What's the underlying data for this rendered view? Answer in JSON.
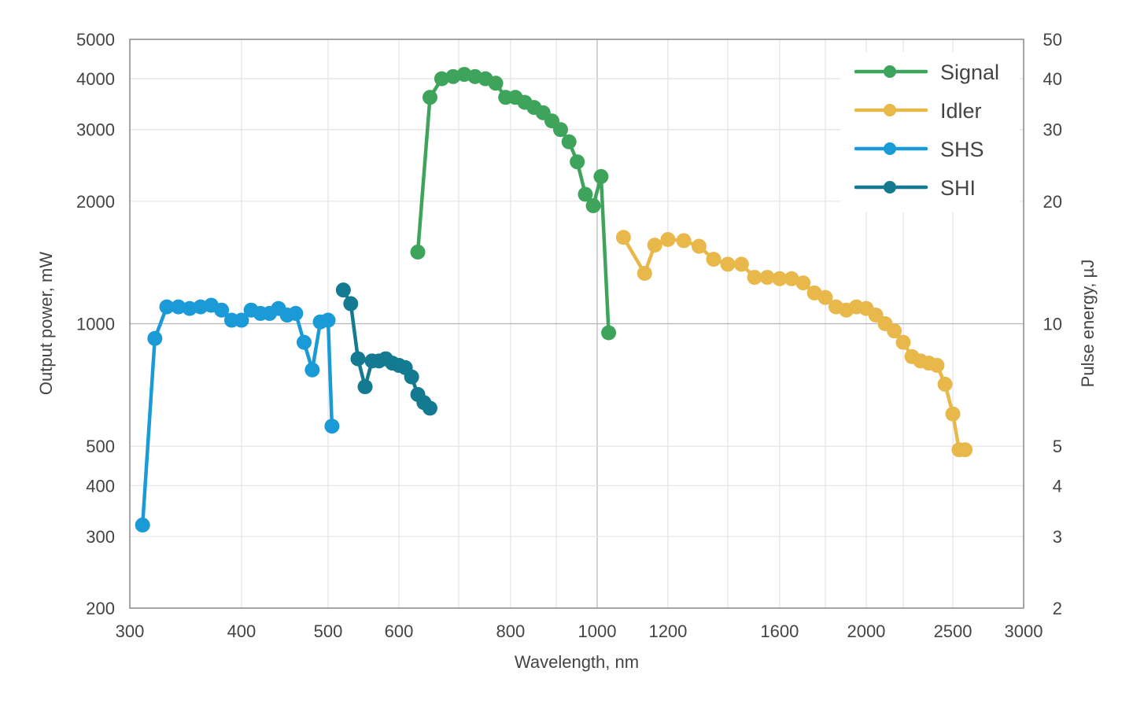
{
  "chart_data": {
    "type": "line",
    "xlabel": "Wavelength, nm",
    "ylabel": "Output power, mW",
    "y2label": "Pulse energy, µJ",
    "x_scale": "log",
    "y_scale": "log",
    "xlim": [
      300,
      3000
    ],
    "ylim": [
      200,
      5000
    ],
    "y2lim": [
      2,
      50
    ],
    "grid": true,
    "legend_position": "top-right",
    "x_ticks": [
      300,
      400,
      500,
      600,
      800,
      1000,
      1200,
      1600,
      2000,
      2500,
      3000
    ],
    "x_tick_labels": [
      "300",
      "400",
      "500",
      "600",
      "800",
      "1000",
      "1200",
      "1600",
      "2000",
      "2500",
      "3000"
    ],
    "x_minor_grid": [
      700,
      900,
      1400,
      1800,
      2200
    ],
    "y_ticks": [
      200,
      300,
      400,
      500,
      1000,
      2000,
      3000,
      4000,
      5000
    ],
    "y_tick_labels": [
      "200",
      "300",
      "400",
      "500",
      "1000",
      "2000",
      "3000",
      "4000",
      "5000"
    ],
    "y2_tick_labels": [
      "2",
      "3",
      "4",
      "5",
      "10",
      "20",
      "30",
      "40",
      "50"
    ],
    "series": [
      {
        "name": "Signal",
        "color": "#3fa45b",
        "x": [
          630,
          650,
          670,
          690,
          710,
          730,
          750,
          770,
          790,
          810,
          830,
          850,
          870,
          890,
          910,
          930,
          950,
          970,
          990,
          1010,
          1030
        ],
        "y": [
          1500,
          3600,
          4000,
          4050,
          4100,
          4050,
          4000,
          3900,
          3600,
          3600,
          3500,
          3400,
          3300,
          3150,
          3000,
          2800,
          2500,
          2080,
          1950,
          2300,
          950
        ]
      },
      {
        "name": "Idler",
        "color": "#e8b84a",
        "x": [
          1070,
          1130,
          1160,
          1200,
          1250,
          1300,
          1350,
          1400,
          1450,
          1500,
          1550,
          1600,
          1650,
          1700,
          1750,
          1800,
          1850,
          1900,
          1950,
          2000,
          2050,
          2100,
          2150,
          2200,
          2250,
          2300,
          2350,
          2400,
          2450,
          2500,
          2540,
          2580
        ],
        "y": [
          1630,
          1330,
          1560,
          1610,
          1600,
          1550,
          1440,
          1400,
          1400,
          1300,
          1300,
          1290,
          1290,
          1260,
          1190,
          1160,
          1100,
          1080,
          1100,
          1090,
          1050,
          1000,
          960,
          900,
          830,
          810,
          800,
          790,
          710,
          600,
          490,
          490
        ]
      },
      {
        "name": "SHS",
        "color": "#1a9ad6",
        "x": [
          310,
          320,
          330,
          340,
          350,
          360,
          370,
          380,
          390,
          400,
          410,
          420,
          430,
          440,
          450,
          460,
          470,
          480,
          490,
          500,
          505
        ],
        "y": [
          320,
          920,
          1100,
          1100,
          1090,
          1100,
          1110,
          1080,
          1020,
          1020,
          1080,
          1060,
          1060,
          1090,
          1050,
          1060,
          900,
          770,
          1010,
          1020,
          560
        ]
      },
      {
        "name": "SHI",
        "color": "#137a91",
        "x": [
          520,
          530,
          540,
          550,
          560,
          570,
          580,
          590,
          600,
          610,
          620,
          630,
          640,
          650
        ],
        "y": [
          1210,
          1120,
          820,
          700,
          810,
          810,
          820,
          800,
          790,
          780,
          740,
          670,
          640,
          620
        ]
      }
    ]
  }
}
